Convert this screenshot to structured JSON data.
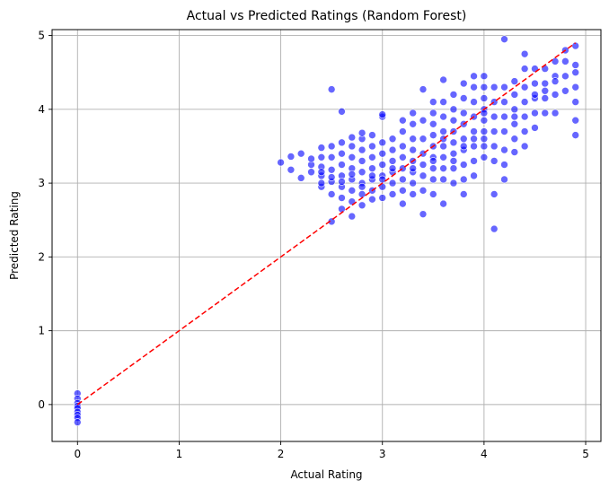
{
  "chart_data": {
    "type": "scatter",
    "title": "Actual vs Predicted Ratings (Random Forest)",
    "xlabel": "Actual Rating",
    "ylabel": "Predicted Rating",
    "xlim": [
      -0.25,
      5.15
    ],
    "ylim": [
      -0.5,
      5.08
    ],
    "xticks": [
      0,
      1,
      2,
      3,
      4,
      5
    ],
    "yticks": [
      0,
      1,
      2,
      3,
      4,
      5
    ],
    "grid": true,
    "legend": "none",
    "colors": {
      "points": "#0000ff",
      "point_edge": "#ffffff",
      "reference_line": "#ff0000",
      "grid": "#b0b0b0"
    },
    "reference_line": {
      "style": "dashed",
      "x": [
        0,
        4.9
      ],
      "y": [
        0,
        4.9
      ]
    },
    "points": {
      "x": [
        0,
        0,
        0,
        0,
        0,
        0,
        0,
        0,
        0,
        2.0,
        2.1,
        2.1,
        2.2,
        2.2,
        2.3,
        2.3,
        2.3,
        2.4,
        2.4,
        2.4,
        2.4,
        2.4,
        2.4,
        2.4,
        2.5,
        2.5,
        2.5,
        2.5,
        2.5,
        2.5,
        2.5,
        2.5,
        2.6,
        2.6,
        2.6,
        2.6,
        2.6,
        2.6,
        2.6,
        2.6,
        2.6,
        2.7,
        2.7,
        2.7,
        2.7,
        2.7,
        2.7,
        2.7,
        2.7,
        2.7,
        2.8,
        2.8,
        2.8,
        2.8,
        2.8,
        2.8,
        2.8,
        2.8,
        2.8,
        2.9,
        2.9,
        2.9,
        2.9,
        2.9,
        2.9,
        2.9,
        2.9,
        3.0,
        3.0,
        3.0,
        3.0,
        3.0,
        3.0,
        3.0,
        3.0,
        3.0,
        3.1,
        3.1,
        3.1,
        3.1,
        3.1,
        3.1,
        3.1,
        3.2,
        3.2,
        3.2,
        3.2,
        3.2,
        3.2,
        3.2,
        3.2,
        3.3,
        3.3,
        3.3,
        3.3,
        3.3,
        3.3,
        3.3,
        3.3,
        3.3,
        3.4,
        3.4,
        3.4,
        3.4,
        3.4,
        3.4,
        3.4,
        3.4,
        3.5,
        3.5,
        3.5,
        3.5,
        3.5,
        3.5,
        3.5,
        3.5,
        3.5,
        3.5,
        3.6,
        3.6,
        3.6,
        3.6,
        3.6,
        3.6,
        3.6,
        3.6,
        3.6,
        3.6,
        3.7,
        3.7,
        3.7,
        3.7,
        3.7,
        3.7,
        3.7,
        3.7,
        3.7,
        3.8,
        3.8,
        3.8,
        3.8,
        3.8,
        3.8,
        3.8,
        3.8,
        3.8,
        3.8,
        3.9,
        3.9,
        3.9,
        3.9,
        3.9,
        3.9,
        3.9,
        3.9,
        3.9,
        4.0,
        4.0,
        4.0,
        4.0,
        4.0,
        4.0,
        4.0,
        4.0,
        4.0,
        4.0,
        4.1,
        4.1,
        4.1,
        4.1,
        4.1,
        4.1,
        4.1,
        4.1,
        4.2,
        4.2,
        4.2,
        4.2,
        4.2,
        4.2,
        4.2,
        4.2,
        4.3,
        4.3,
        4.3,
        4.3,
        4.3,
        4.3,
        4.3,
        4.4,
        4.4,
        4.4,
        4.4,
        4.4,
        4.4,
        4.4,
        4.5,
        4.5,
        4.5,
        4.5,
        4.5,
        4.5,
        4.6,
        4.6,
        4.6,
        4.6,
        4.6,
        4.7,
        4.7,
        4.7,
        4.7,
        4.7,
        4.8,
        4.8,
        4.8,
        4.8,
        4.9,
        4.9,
        4.9,
        4.9,
        4.9,
        4.9,
        4.9
      ],
      "y": [
        0.15,
        0.08,
        0.02,
        -0.02,
        -0.05,
        -0.1,
        -0.14,
        -0.18,
        -0.24,
        3.28,
        3.18,
        3.36,
        3.07,
        3.4,
        3.25,
        3.33,
        3.15,
        2.95,
        3.1,
        3.22,
        3.35,
        3.48,
        3.0,
        3.15,
        2.48,
        2.85,
        3.02,
        3.18,
        3.35,
        3.5,
        4.27,
        3.08,
        2.65,
        2.8,
        2.95,
        3.1,
        3.25,
        3.4,
        3.55,
        3.97,
        3.02,
        2.55,
        2.75,
        2.9,
        3.05,
        3.2,
        3.35,
        3.5,
        3.62,
        3.12,
        2.7,
        2.85,
        3.0,
        3.15,
        3.3,
        3.45,
        3.6,
        3.68,
        2.95,
        2.78,
        2.9,
        3.05,
        3.2,
        3.35,
        3.5,
        3.65,
        3.1,
        2.8,
        2.95,
        3.1,
        3.25,
        3.4,
        3.55,
        3.9,
        3.93,
        3.05,
        2.85,
        3.0,
        3.15,
        3.3,
        3.45,
        3.6,
        3.2,
        2.72,
        2.9,
        3.05,
        3.2,
        3.35,
        3.5,
        3.7,
        3.85,
        2.85,
        3.0,
        3.15,
        3.3,
        3.45,
        3.6,
        3.8,
        3.95,
        3.2,
        2.58,
        2.9,
        3.1,
        3.25,
        3.4,
        3.6,
        3.85,
        4.27,
        2.85,
        3.05,
        3.2,
        3.35,
        3.5,
        3.65,
        3.8,
        3.95,
        4.1,
        3.3,
        2.72,
        3.05,
        3.2,
        3.35,
        3.5,
        3.7,
        3.9,
        4.1,
        4.4,
        3.6,
        3.0,
        3.2,
        3.4,
        3.55,
        3.7,
        3.85,
        4.0,
        4.2,
        3.3,
        2.85,
        3.05,
        3.25,
        3.45,
        3.6,
        3.8,
        3.95,
        4.15,
        4.35,
        3.5,
        3.1,
        3.3,
        3.5,
        3.7,
        3.9,
        4.1,
        4.3,
        4.45,
        3.6,
        3.35,
        3.5,
        3.7,
        3.85,
        4.0,
        4.15,
        4.3,
        4.45,
        3.95,
        3.6,
        2.38,
        2.85,
        3.3,
        3.5,
        3.7,
        3.9,
        4.1,
        4.3,
        3.05,
        3.25,
        3.45,
        3.7,
        3.9,
        4.1,
        4.3,
        4.95,
        3.42,
        3.6,
        3.8,
        4.0,
        4.2,
        4.38,
        3.9,
        3.5,
        3.7,
        3.9,
        4.1,
        4.3,
        4.55,
        4.75,
        3.75,
        3.95,
        4.15,
        4.35,
        4.55,
        4.2,
        3.95,
        4.15,
        4.35,
        4.55,
        4.25,
        3.95,
        4.2,
        4.45,
        4.65,
        4.38,
        4.25,
        4.45,
        4.65,
        4.8,
        3.65,
        3.85,
        4.1,
        4.3,
        4.5,
        4.6,
        4.86
      ]
    }
  }
}
